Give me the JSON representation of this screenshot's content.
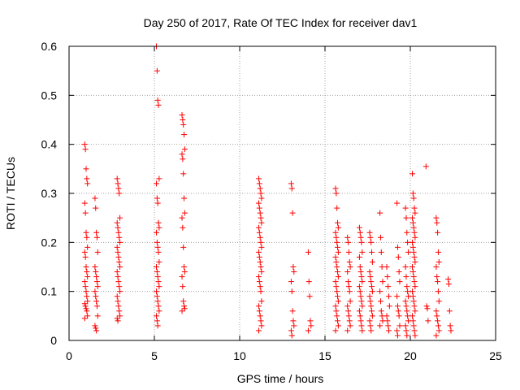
{
  "chart_data": {
    "type": "scatter",
    "title": "Day 250 of 2017, Rate Of TEC Index for receiver dav1",
    "xlabel": "GPS time / hours",
    "ylabel": "ROTI / TECUs",
    "xlim": [
      0,
      25
    ],
    "ylim": [
      0,
      0.6
    ],
    "xticks": [
      "0",
      "5",
      "10",
      "15",
      "20",
      "25"
    ],
    "yticks": [
      "0",
      "0.1",
      "0.2",
      "0.3",
      "0.4",
      "0.5",
      "0.6"
    ],
    "grid": true,
    "marker": "+",
    "color": "#ff0000",
    "clusters": [
      {
        "x": 1.0,
        "values": [
          0.4,
          0.39,
          0.35,
          0.33,
          0.32,
          0.28,
          0.26,
          0.22,
          0.21,
          0.19,
          0.18,
          0.17,
          0.15,
          0.14,
          0.13,
          0.12,
          0.11,
          0.1,
          0.09,
          0.08,
          0.075,
          0.07,
          0.065,
          0.06,
          0.05,
          0.045
        ]
      },
      {
        "x": 1.6,
        "values": [
          0.29,
          0.27,
          0.22,
          0.21,
          0.18,
          0.15,
          0.14,
          0.13,
          0.12,
          0.11,
          0.1,
          0.09,
          0.08,
          0.07,
          0.05,
          0.03,
          0.025,
          0.02
        ]
      },
      {
        "x": 2.9,
        "values": [
          0.33,
          0.32,
          0.31,
          0.3,
          0.25,
          0.24,
          0.23,
          0.22,
          0.21,
          0.2,
          0.19,
          0.18,
          0.17,
          0.16,
          0.15,
          0.14,
          0.13,
          0.12,
          0.11,
          0.1,
          0.09,
          0.08,
          0.07,
          0.06,
          0.05,
          0.045,
          0.04
        ]
      },
      {
        "x": 5.2,
        "values": [
          0.6,
          0.55,
          0.49,
          0.48,
          0.33,
          0.32,
          0.29,
          0.28,
          0.24,
          0.23,
          0.22,
          0.2,
          0.19,
          0.18,
          0.16,
          0.15,
          0.14,
          0.13,
          0.12,
          0.11,
          0.1,
          0.09,
          0.08,
          0.07,
          0.06,
          0.05,
          0.04,
          0.03
        ]
      },
      {
        "x": 6.7,
        "values": [
          0.46,
          0.45,
          0.44,
          0.42,
          0.39,
          0.38,
          0.37,
          0.34,
          0.29,
          0.26,
          0.25,
          0.23,
          0.19,
          0.15,
          0.14,
          0.13,
          0.11,
          0.08,
          0.07,
          0.065,
          0.06
        ]
      },
      {
        "x": 11.2,
        "values": [
          0.33,
          0.32,
          0.31,
          0.3,
          0.29,
          0.28,
          0.27,
          0.26,
          0.25,
          0.24,
          0.23,
          0.22,
          0.21,
          0.2,
          0.19,
          0.18,
          0.17,
          0.16,
          0.15,
          0.14,
          0.13,
          0.12,
          0.11,
          0.1,
          0.08,
          0.07,
          0.06,
          0.05,
          0.04,
          0.03,
          0.02
        ]
      },
      {
        "x": 13.1,
        "values": [
          0.32,
          0.31,
          0.26,
          0.15,
          0.14,
          0.12,
          0.1,
          0.06,
          0.04,
          0.03,
          0.02,
          0.01
        ]
      },
      {
        "x": 14.1,
        "values": [
          0.18,
          0.12,
          0.09,
          0.04,
          0.03,
          0.02
        ]
      },
      {
        "x": 15.7,
        "values": [
          0.31,
          0.3,
          0.27,
          0.24,
          0.23,
          0.22,
          0.21,
          0.2,
          0.19,
          0.18,
          0.17,
          0.16,
          0.15,
          0.14,
          0.13,
          0.12,
          0.11,
          0.1,
          0.09,
          0.08,
          0.07,
          0.06,
          0.05,
          0.04,
          0.03,
          0.02
        ]
      },
      {
        "x": 16.4,
        "values": [
          0.21,
          0.2,
          0.18,
          0.16,
          0.15,
          0.14,
          0.12,
          0.11,
          0.1,
          0.08,
          0.07,
          0.06,
          0.05,
          0.04,
          0.03,
          0.02
        ]
      },
      {
        "x": 17.1,
        "values": [
          0.23,
          0.22,
          0.21,
          0.2,
          0.18,
          0.17,
          0.15,
          0.14,
          0.13,
          0.12,
          0.11,
          0.1,
          0.09,
          0.08,
          0.07,
          0.06,
          0.05,
          0.04,
          0.03,
          0.02
        ]
      },
      {
        "x": 17.7,
        "values": [
          0.22,
          0.21,
          0.2,
          0.18,
          0.16,
          0.14,
          0.13,
          0.12,
          0.11,
          0.1,
          0.09,
          0.08,
          0.07,
          0.06,
          0.05,
          0.04,
          0.03,
          0.02
        ]
      },
      {
        "x": 18.3,
        "values": [
          0.26,
          0.21,
          0.18,
          0.15,
          0.12,
          0.1,
          0.08,
          0.06,
          0.05,
          0.04,
          0.03
        ]
      },
      {
        "x": 18.7,
        "values": [
          0.15,
          0.13,
          0.11,
          0.09,
          0.07,
          0.05,
          0.04,
          0.03,
          0.02
        ]
      },
      {
        "x": 19.3,
        "values": [
          0.28,
          0.19,
          0.17,
          0.14,
          0.12,
          0.09,
          0.07,
          0.06,
          0.05,
          0.03,
          0.02,
          0.01
        ]
      },
      {
        "x": 19.8,
        "values": [
          0.27,
          0.25,
          0.22,
          0.2,
          0.18,
          0.15,
          0.13,
          0.11,
          0.1,
          0.09,
          0.08,
          0.07,
          0.06,
          0.05,
          0.04,
          0.03,
          0.02,
          0.01
        ]
      },
      {
        "x": 20.2,
        "values": [
          0.34,
          0.3,
          0.29,
          0.27,
          0.26,
          0.25,
          0.24,
          0.23,
          0.22,
          0.21,
          0.2,
          0.19,
          0.18,
          0.17,
          0.16,
          0.15,
          0.14,
          0.13,
          0.12,
          0.11,
          0.1,
          0.09,
          0.08,
          0.07,
          0.06,
          0.05,
          0.04,
          0.03,
          0.02,
          0.01
        ]
      },
      {
        "x": 21.0,
        "values": [
          0.355,
          0.07,
          0.065,
          0.04
        ]
      },
      {
        "x": 21.6,
        "values": [
          0.25,
          0.24,
          0.22,
          0.18,
          0.16,
          0.15,
          0.13,
          0.12,
          0.1,
          0.08,
          0.06,
          0.05,
          0.04,
          0.03,
          0.02,
          0.01
        ]
      },
      {
        "x": 22.3,
        "values": [
          0.125,
          0.115,
          0.06,
          0.03,
          0.02
        ]
      }
    ]
  }
}
